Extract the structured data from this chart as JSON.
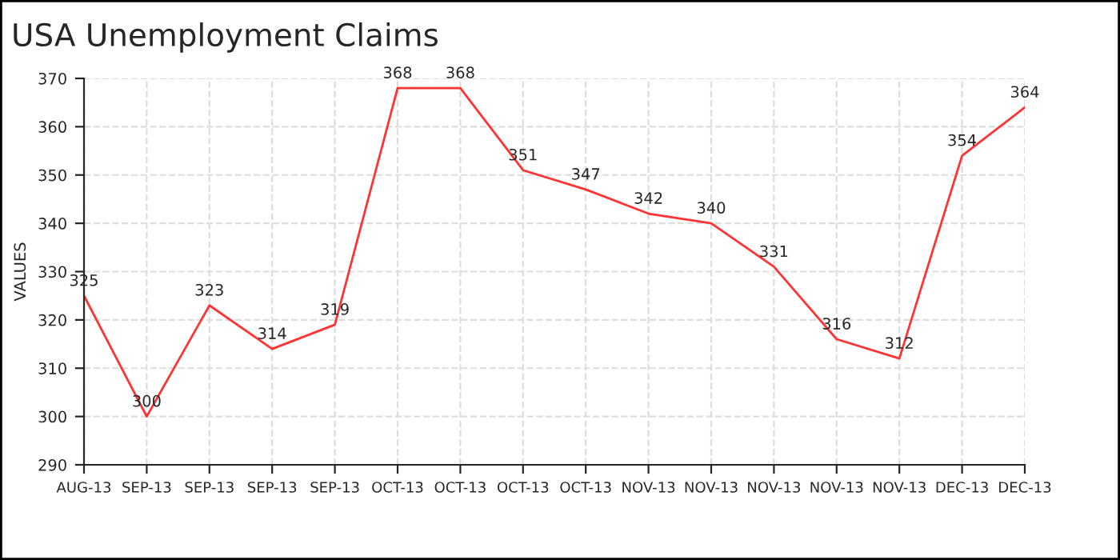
{
  "chart_data": {
    "type": "line",
    "title": "USA Unemployment Claims",
    "ylabel": "VALUES",
    "categories": [
      "AUG-13",
      "SEP-13",
      "SEP-13",
      "SEP-13",
      "SEP-13",
      "OCT-13",
      "OCT-13",
      "OCT-13",
      "OCT-13",
      "NOV-13",
      "NOV-13",
      "NOV-13",
      "NOV-13",
      "NOV-13",
      "DEC-13",
      "DEC-13"
    ],
    "series": [
      {
        "color": "#ff3333",
        "values": [
          325,
          300,
          323,
          314,
          319,
          368,
          368,
          351,
          347,
          342,
          340,
          331,
          316,
          312,
          354,
          364
        ]
      }
    ],
    "ylim": [
      290,
      370
    ],
    "yticks": [
      290,
      300,
      310,
      320,
      330,
      340,
      350,
      360,
      370
    ],
    "grid": true,
    "data_labels": true,
    "marker": "none",
    "line_style": "solid",
    "legend": false
  }
}
